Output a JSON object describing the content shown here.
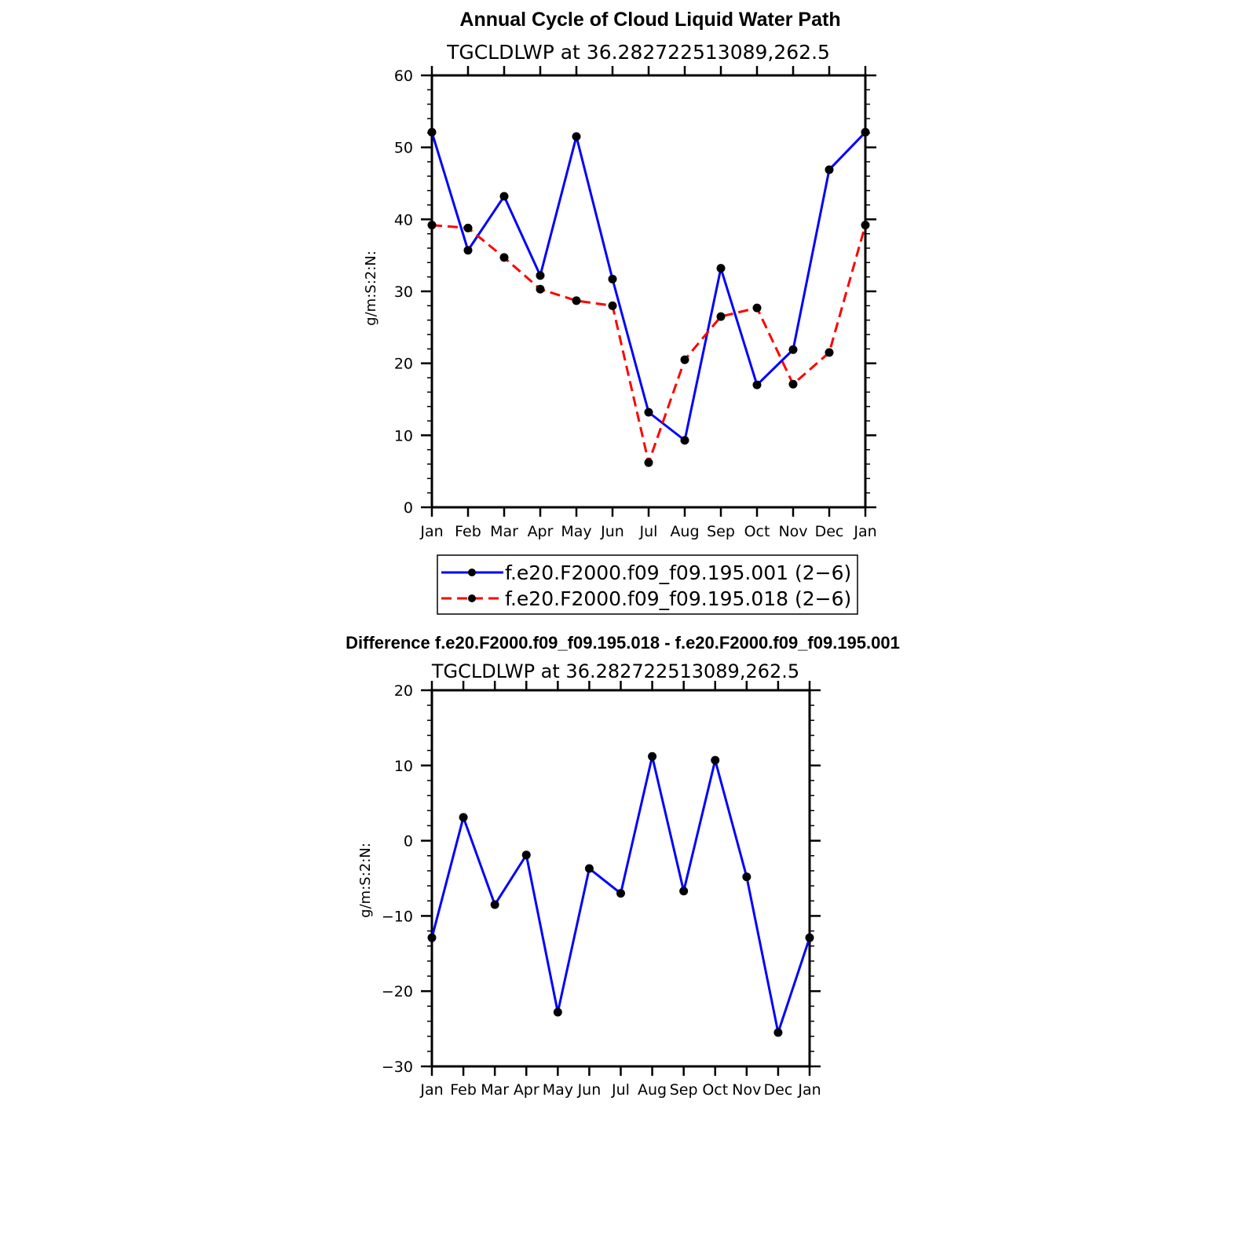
{
  "colors": {
    "model_a": "#0000ff",
    "model_b": "#ff0000",
    "marker": "#000000",
    "axis": "#000000"
  },
  "chart_data": [
    {
      "type": "line",
      "title": "Annual Cycle of Cloud Liquid Water Path",
      "subtitle": "TGCLDLWP  at  36.282722513089,262.5",
      "xlabel": "",
      "ylabel": "g/m:S:2:N:",
      "categories": [
        "Jan",
        "Feb",
        "Mar",
        "Apr",
        "May",
        "Jun",
        "Jul",
        "Aug",
        "Sep",
        "Oct",
        "Nov",
        "Dec",
        "Jan"
      ],
      "ylim": [
        0,
        60
      ],
      "yticks": [
        "0",
        "10",
        "20",
        "30",
        "40",
        "50",
        "60"
      ],
      "series": [
        {
          "name": "f.e20.F2000.f09_f09.195.001 (2−6)",
          "style": "solid",
          "values": [
            52.1,
            35.7,
            43.2,
            32.2,
            51.5,
            31.7,
            13.2,
            9.3,
            33.2,
            17.0,
            21.9,
            46.9,
            52.1
          ]
        },
        {
          "name": "f.e20.F2000.f09_f09.195.018 (2−6)",
          "style": "dashed",
          "values": [
            39.2,
            38.8,
            34.7,
            30.3,
            28.7,
            28.0,
            6.2,
            20.5,
            26.5,
            27.7,
            17.1,
            21.5,
            39.2
          ]
        }
      ],
      "legend": "below"
    },
    {
      "type": "line",
      "title": "Difference f.e20.F2000.f09_f09.195.018 - f.e20.F2000.f09_f09.195.001",
      "subtitle": "TGCLDLWP  at  36.282722513089,262.5",
      "xlabel": "",
      "ylabel": "g/m:S:2:N:",
      "categories": [
        "Jan",
        "Feb",
        "Mar",
        "Apr",
        "May",
        "Jun",
        "Jul",
        "Aug",
        "Sep",
        "Oct",
        "Nov",
        "Dec",
        "Jan"
      ],
      "ylim": [
        -30,
        20
      ],
      "yticks": [
        "−30",
        "−20",
        "−10",
        "0",
        "10",
        "20"
      ],
      "series": [
        {
          "name": "difference",
          "style": "solid",
          "values": [
            -12.9,
            3.1,
            -8.5,
            -1.9,
            -22.8,
            -3.7,
            -7.0,
            11.2,
            -6.7,
            10.7,
            -4.8,
            -25.5,
            -12.9
          ]
        }
      ]
    }
  ]
}
